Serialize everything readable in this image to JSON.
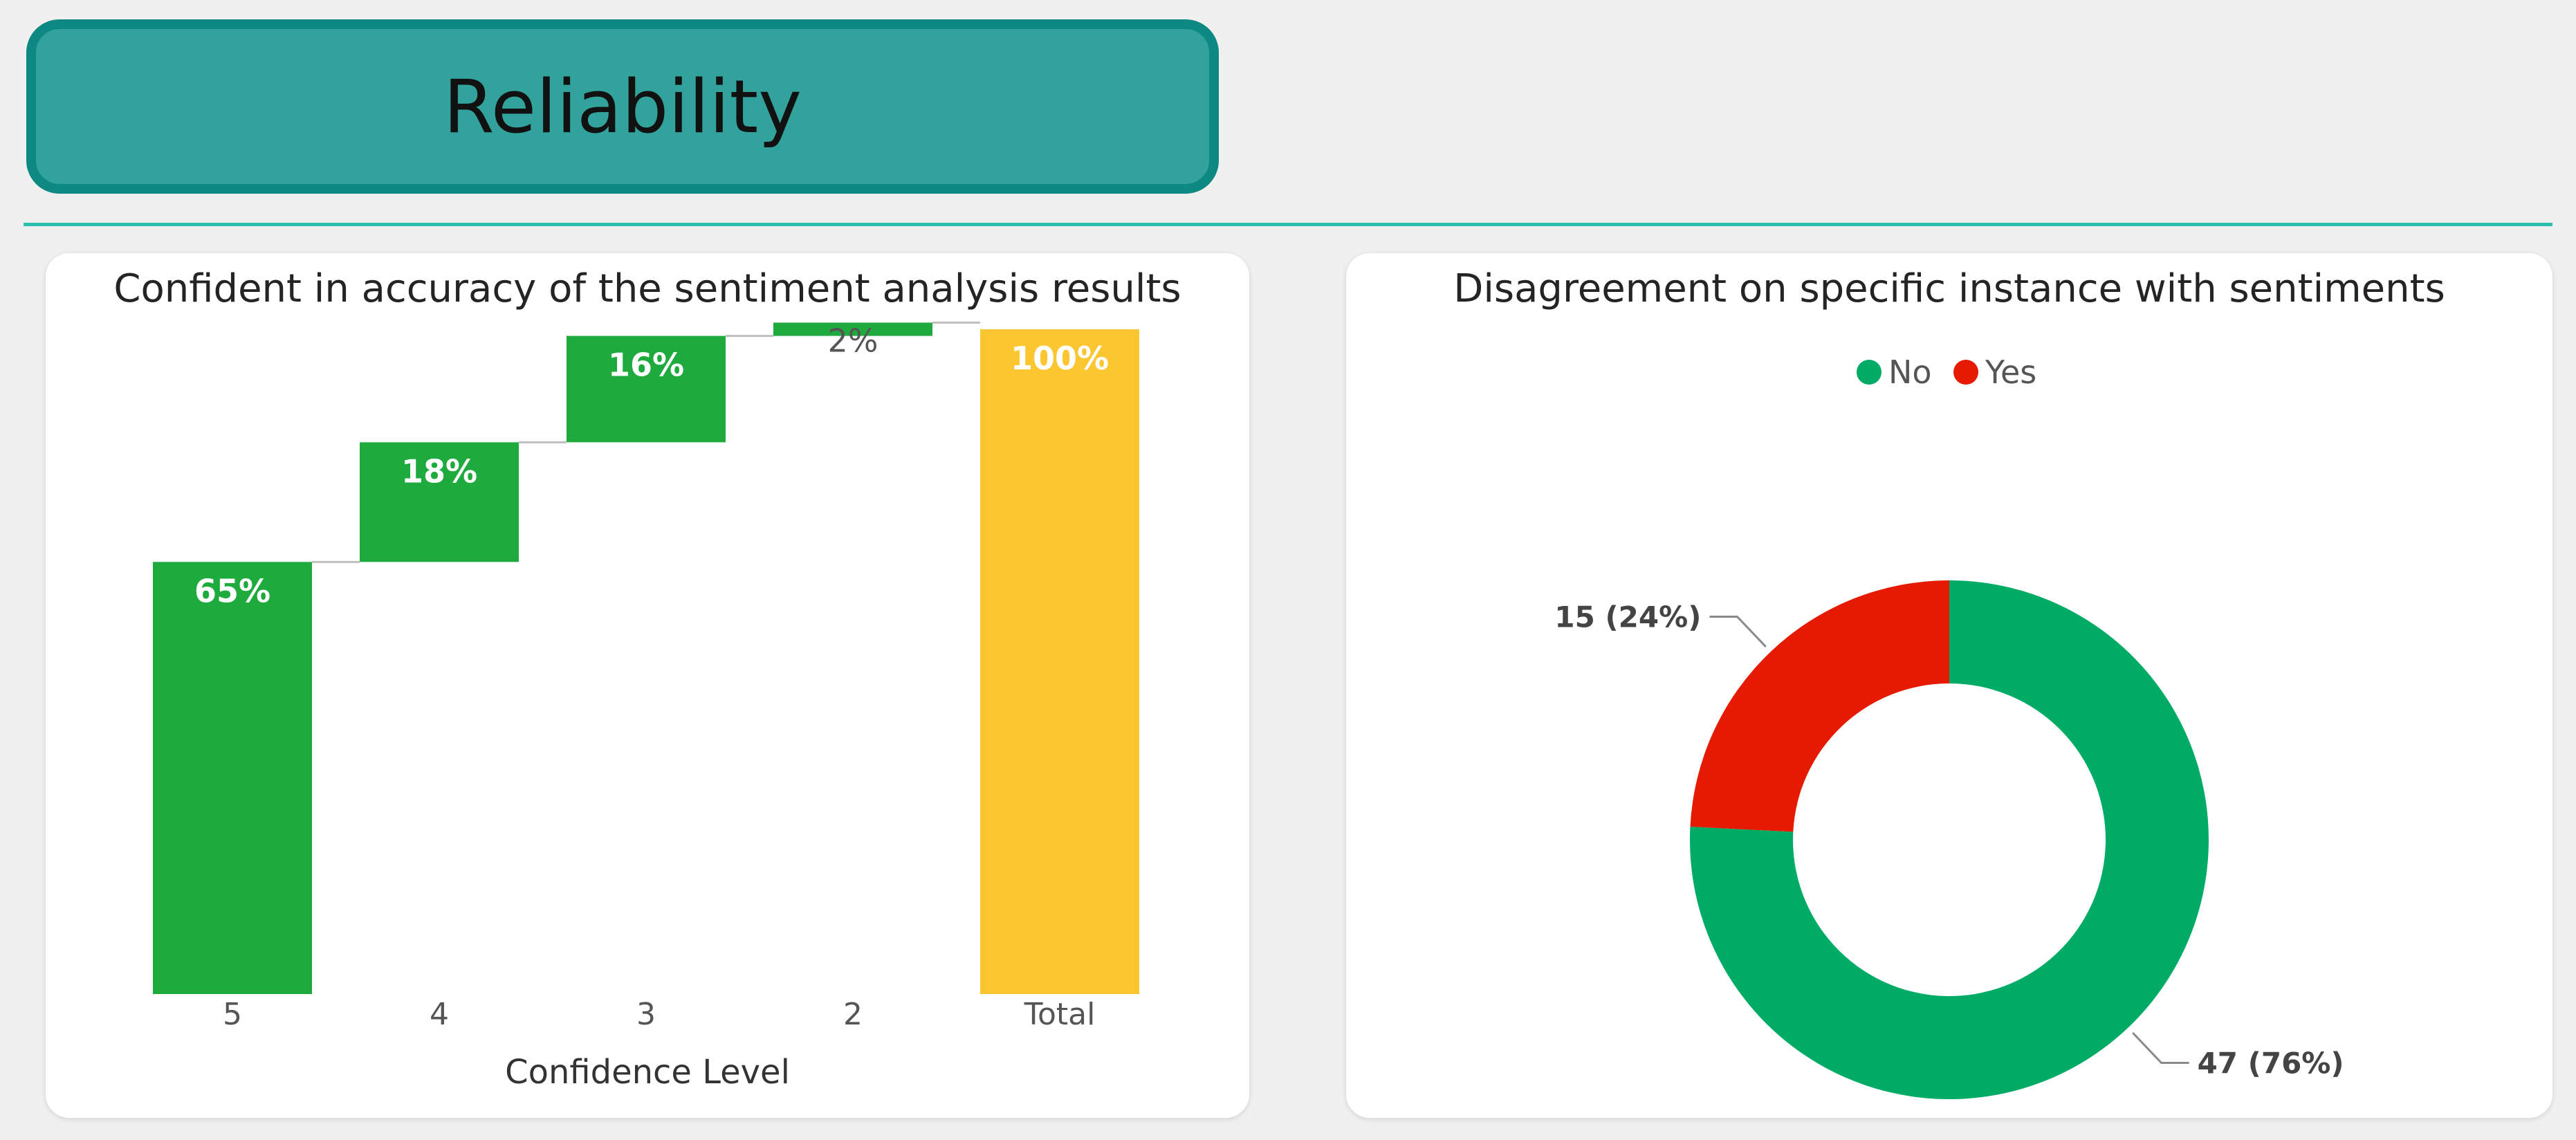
{
  "header": {
    "title": "Reliability"
  },
  "chart_data": [
    {
      "type": "bar",
      "subtype": "waterfall",
      "title": "Confident in accuracy of the sentiment analysis results",
      "xlabel": "Confidence Level",
      "ylabel": "",
      "categories": [
        "5",
        "4",
        "3",
        "2",
        "Total"
      ],
      "values": [
        65,
        18,
        16,
        2,
        100
      ],
      "labels": [
        "65%",
        "18%",
        "16%",
        "2%",
        "100%"
      ],
      "ylim": [
        0,
        100
      ],
      "colors": {
        "increase": "#1eaa3d",
        "total": "#fcc630",
        "connector": "#bfbfbf"
      },
      "grid": false
    },
    {
      "type": "pie",
      "subtype": "donut",
      "title": "Disagreement on specific instance with sentiments",
      "categories": [
        "No",
        "Yes"
      ],
      "values": [
        47,
        15
      ],
      "labels": [
        "47 (76%)",
        "15 (24%)"
      ],
      "colors": [
        "#00ab66",
        "#e61a00"
      ],
      "legend": "top-center"
    }
  ]
}
